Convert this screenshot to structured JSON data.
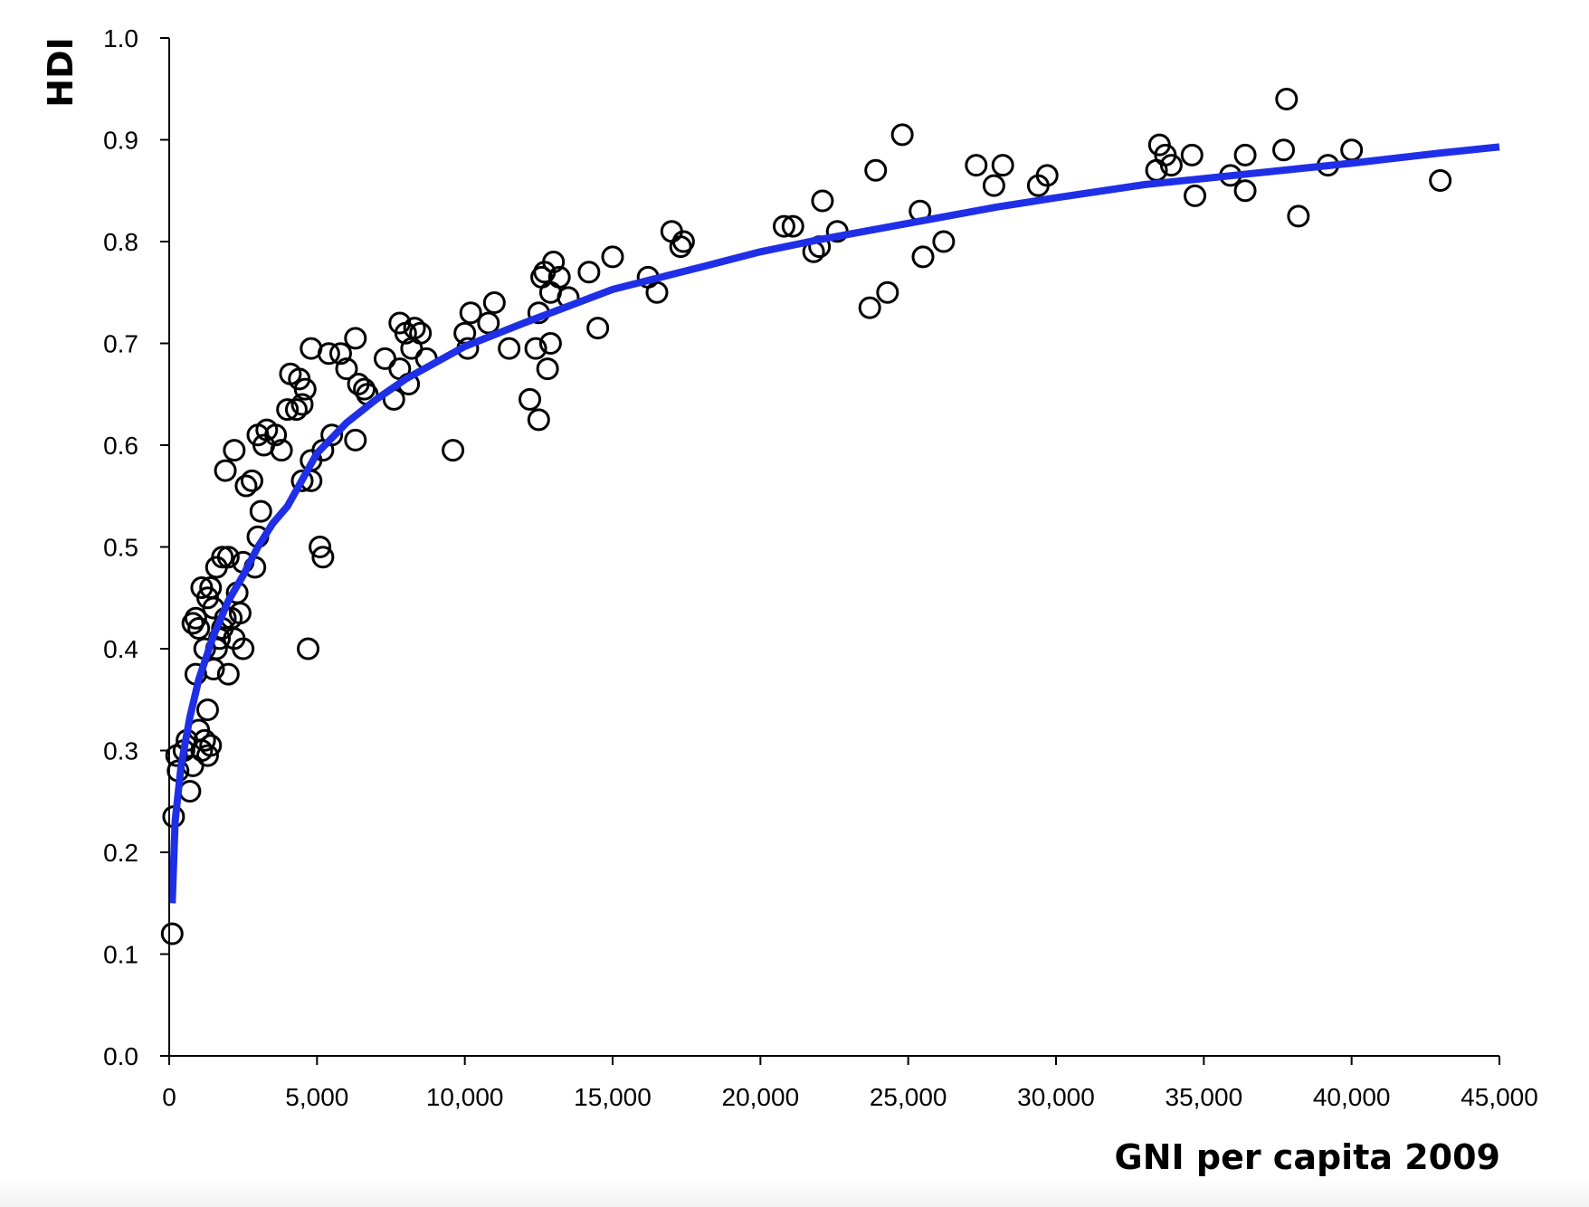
{
  "chart_data": {
    "type": "scatter",
    "title": "",
    "xlabel": "GNI per capita 2009",
    "ylabel": "HDI",
    "xlim": [
      0,
      45000
    ],
    "ylim": [
      0.0,
      1.0
    ],
    "x_ticks": [
      "0",
      "5,000",
      "10,000",
      "15,000",
      "20,000",
      "25,000",
      "30,000",
      "35,000",
      "40,000",
      "45,000"
    ],
    "y_ticks": [
      "0.0",
      "0.1",
      "0.2",
      "0.3",
      "0.4",
      "0.5",
      "0.6",
      "0.7",
      "0.8",
      "0.9",
      "1.0"
    ],
    "grid": false,
    "legend": "none",
    "series": [
      {
        "kind": "scatter",
        "marker": "open-circle",
        "color": "#000000",
        "points": [
          [
            100,
            0.12
          ],
          [
            150,
            0.235
          ],
          [
            250,
            0.295
          ],
          [
            300,
            0.28
          ],
          [
            500,
            0.3
          ],
          [
            600,
            0.31
          ],
          [
            700,
            0.26
          ],
          [
            800,
            0.285
          ],
          [
            900,
            0.375
          ],
          [
            1000,
            0.32
          ],
          [
            1100,
            0.3
          ],
          [
            1200,
            0.31
          ],
          [
            1300,
            0.295
          ],
          [
            1400,
            0.305
          ],
          [
            1300,
            0.34
          ],
          [
            1500,
            0.38
          ],
          [
            800,
            0.425
          ],
          [
            900,
            0.43
          ],
          [
            1000,
            0.42
          ],
          [
            1100,
            0.46
          ],
          [
            1200,
            0.4
          ],
          [
            1300,
            0.45
          ],
          [
            1400,
            0.46
          ],
          [
            1500,
            0.44
          ],
          [
            1600,
            0.4
          ],
          [
            1700,
            0.41
          ],
          [
            1800,
            0.42
          ],
          [
            1900,
            0.43
          ],
          [
            2000,
            0.375
          ],
          [
            2100,
            0.43
          ],
          [
            2200,
            0.41
          ],
          [
            2300,
            0.455
          ],
          [
            2400,
            0.435
          ],
          [
            2500,
            0.4
          ],
          [
            1600,
            0.48
          ],
          [
            1800,
            0.49
          ],
          [
            2000,
            0.49
          ],
          [
            2500,
            0.485
          ],
          [
            2900,
            0.48
          ],
          [
            3000,
            0.51
          ],
          [
            3100,
            0.535
          ],
          [
            1900,
            0.575
          ],
          [
            2200,
            0.595
          ],
          [
            2600,
            0.56
          ],
          [
            2800,
            0.565
          ],
          [
            3000,
            0.61
          ],
          [
            3300,
            0.615
          ],
          [
            3600,
            0.61
          ],
          [
            3200,
            0.6
          ],
          [
            3800,
            0.595
          ],
          [
            4000,
            0.635
          ],
          [
            4300,
            0.635
          ],
          [
            4500,
            0.64
          ],
          [
            4100,
            0.67
          ],
          [
            4400,
            0.665
          ],
          [
            4600,
            0.655
          ],
          [
            4500,
            0.565
          ],
          [
            4800,
            0.565
          ],
          [
            4800,
            0.585
          ],
          [
            5100,
            0.5
          ],
          [
            5200,
            0.49
          ],
          [
            4700,
            0.4
          ],
          [
            5200,
            0.595
          ],
          [
            5500,
            0.61
          ],
          [
            4800,
            0.695
          ],
          [
            5400,
            0.69
          ],
          [
            5800,
            0.69
          ],
          [
            6000,
            0.675
          ],
          [
            6300,
            0.705
          ],
          [
            6300,
            0.605
          ],
          [
            6400,
            0.66
          ],
          [
            6600,
            0.655
          ],
          [
            6700,
            0.65
          ],
          [
            7300,
            0.685
          ],
          [
            7600,
            0.645
          ],
          [
            7800,
            0.675
          ],
          [
            7800,
            0.72
          ],
          [
            8000,
            0.71
          ],
          [
            8200,
            0.695
          ],
          [
            8100,
            0.66
          ],
          [
            8300,
            0.715
          ],
          [
            8500,
            0.71
          ],
          [
            8700,
            0.685
          ],
          [
            9600,
            0.595
          ],
          [
            10000,
            0.71
          ],
          [
            10100,
            0.695
          ],
          [
            10200,
            0.73
          ],
          [
            10800,
            0.72
          ],
          [
            11000,
            0.74
          ],
          [
            11500,
            0.695
          ],
          [
            12200,
            0.645
          ],
          [
            12400,
            0.695
          ],
          [
            12500,
            0.625
          ],
          [
            12500,
            0.73
          ],
          [
            12600,
            0.765
          ],
          [
            12700,
            0.77
          ],
          [
            12800,
            0.675
          ],
          [
            12900,
            0.7
          ],
          [
            12900,
            0.75
          ],
          [
            13000,
            0.78
          ],
          [
            13200,
            0.765
          ],
          [
            13500,
            0.745
          ],
          [
            14200,
            0.77
          ],
          [
            14500,
            0.715
          ],
          [
            15000,
            0.785
          ],
          [
            16200,
            0.765
          ],
          [
            16500,
            0.75
          ],
          [
            17000,
            0.81
          ],
          [
            17300,
            0.795
          ],
          [
            17400,
            0.8
          ],
          [
            20800,
            0.815
          ],
          [
            21100,
            0.815
          ],
          [
            21800,
            0.79
          ],
          [
            22000,
            0.795
          ],
          [
            22100,
            0.84
          ],
          [
            22600,
            0.81
          ],
          [
            23700,
            0.735
          ],
          [
            23900,
            0.87
          ],
          [
            24300,
            0.75
          ],
          [
            24800,
            0.905
          ],
          [
            25400,
            0.83
          ],
          [
            25500,
            0.785
          ],
          [
            26200,
            0.8
          ],
          [
            27300,
            0.875
          ],
          [
            27900,
            0.855
          ],
          [
            28200,
            0.875
          ],
          [
            29400,
            0.855
          ],
          [
            29700,
            0.865
          ],
          [
            33400,
            0.87
          ],
          [
            33500,
            0.895
          ],
          [
            33700,
            0.885
          ],
          [
            33900,
            0.875
          ],
          [
            34600,
            0.885
          ],
          [
            34700,
            0.845
          ],
          [
            35900,
            0.865
          ],
          [
            36400,
            0.885
          ],
          [
            36400,
            0.85
          ],
          [
            37700,
            0.89
          ],
          [
            37800,
            0.94
          ],
          [
            38200,
            0.825
          ],
          [
            39200,
            0.875
          ],
          [
            40000,
            0.89
          ],
          [
            43000,
            0.86
          ]
        ]
      },
      {
        "kind": "trendline",
        "model": "logarithmic",
        "color": "#1f2fe8",
        "x": [
          100,
          200,
          400,
          700,
          1000,
          1500,
          2000,
          2500,
          3000,
          3500,
          4000,
          5000,
          6000,
          7000,
          8000,
          10000,
          12000,
          15000,
          18000,
          20000,
          22000,
          25000,
          28000,
          30000,
          33000,
          35000,
          38000,
          40000,
          43000,
          45000
        ],
        "y": [
          0.15,
          0.23,
          0.285,
          0.333,
          0.37,
          0.413,
          0.447,
          0.472,
          0.5,
          0.523,
          0.54,
          0.592,
          0.622,
          0.645,
          0.665,
          0.697,
          0.72,
          0.753,
          0.775,
          0.79,
          0.802,
          0.818,
          0.834,
          0.843,
          0.856,
          0.862,
          0.871,
          0.877,
          0.887,
          0.893
        ]
      }
    ]
  }
}
